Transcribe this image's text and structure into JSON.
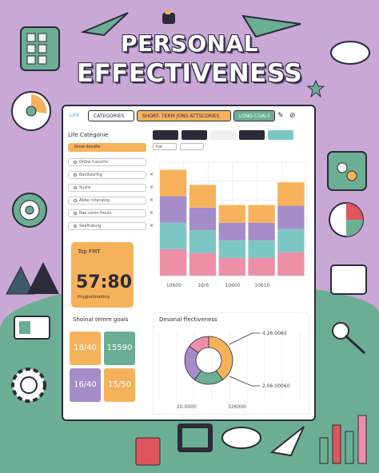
{
  "title_line1": "PERSONAL",
  "title_line2": "EFFECTIVENESS",
  "colors": {
    "background": "#c9a8d6",
    "hills": "#6cae93",
    "orange": "#f6b25b",
    "pink": "#ee8fa8",
    "teal": "#7cc7c4",
    "purple": "#a58dc9",
    "green": "#6cae93",
    "red": "#e0555b",
    "dark": "#2b2b3a"
  },
  "tabs": {
    "life": "LIFE",
    "categories": "CATEGORIES",
    "short_term": "SHORT- TERM JONS ATTSCORIES",
    "long_goals": "LONG COALS"
  },
  "sidebar": {
    "title": "Life Categonie",
    "selected": "Grow lionsfie",
    "items": [
      {
        "label": "Onbw fuscorts"
      },
      {
        "label": "Baoltaurfiig"
      },
      {
        "label": "Suslis"
      },
      {
        "label": "Abbe rotacaiog"
      },
      {
        "label": "Rae sonio freuts"
      },
      {
        "label": "Seaftuburg"
      }
    ]
  },
  "top_fmt": {
    "label": "Top FMT",
    "value": "57:80",
    "sub": "Hryglroitrootiniy"
  },
  "short_term": {
    "title": "Shoinal temm goals",
    "cards": [
      {
        "value": "18/40",
        "color": "#f6b25b"
      },
      {
        "value": "15590",
        "color": "#6cae93"
      },
      {
        "value": "16/40",
        "color": "#a58dc9"
      },
      {
        "value": "15/50",
        "color": "#f6b25b"
      }
    ]
  },
  "chart_controls": {
    "a": "fue",
    "b": ""
  },
  "chart_data": [
    {
      "type": "bar",
      "categories": [
        "10600",
        "16r6",
        "10600",
        "10610",
        ""
      ],
      "series": [
        {
          "values": [
            1,
            1,
            1,
            1,
            1
          ],
          "color": "#ee8fa8"
        },
        {
          "values": [
            1,
            1,
            1,
            1,
            1
          ],
          "color": "#7cc7c4"
        },
        {
          "values": [
            1,
            1,
            1,
            1,
            1
          ],
          "color": "#a58dc9"
        },
        {
          "values": [
            1,
            1,
            1,
            1,
            1
          ],
          "color": "#f6b25b"
        }
      ],
      "stack_totals": [
        4.2,
        3.6,
        2.8,
        2.8,
        3.7
      ],
      "grid": true
    },
    {
      "type": "pie",
      "title": "Desonal ffectiveness",
      "slices": [
        {
          "value": 40,
          "color": "#f6b25b"
        },
        {
          "value": 20,
          "color": "#6cae93"
        },
        {
          "value": 25,
          "color": "#a58dc9"
        },
        {
          "value": 15,
          "color": "#ee8fa8"
        }
      ],
      "annotations": [
        "4.26.0060",
        "2.06.00060"
      ],
      "x_ticks": [
        "20.0000",
        "326000"
      ]
    }
  ]
}
